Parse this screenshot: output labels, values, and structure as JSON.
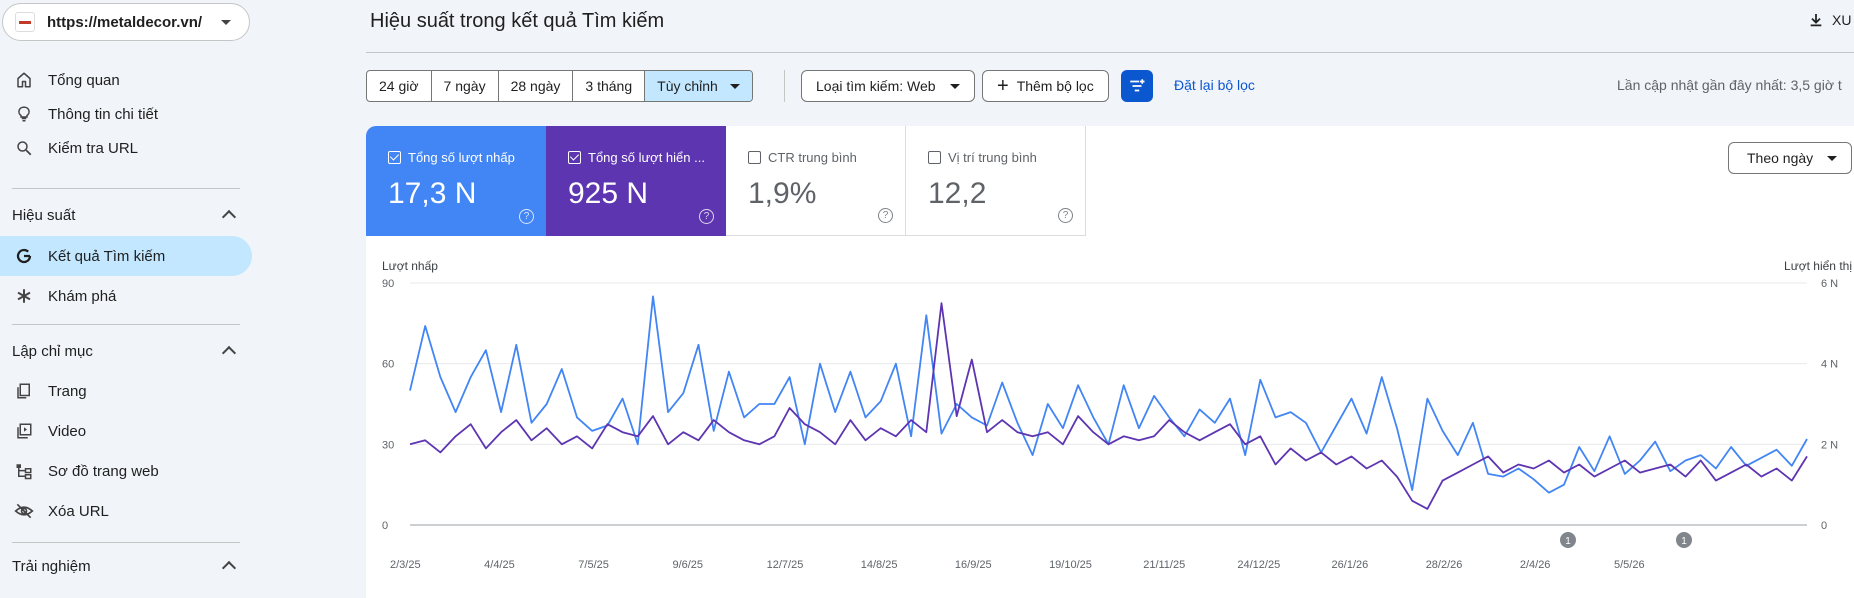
{
  "sidebar": {
    "property_url": "https://metaldecor.vn/",
    "top_items": [
      {
        "label": "Tổng quan",
        "icon": "home-icon"
      },
      {
        "label": "Thông tin chi tiết",
        "icon": "lightbulb-icon"
      },
      {
        "label": "Kiểm tra URL",
        "icon": "search-icon"
      }
    ],
    "sections": [
      {
        "title": "Hiệu suất",
        "items": [
          {
            "label": "Kết quả Tìm kiếm",
            "icon": "google-g-icon",
            "active": true
          },
          {
            "label": "Khám phá",
            "icon": "asterisk-icon"
          }
        ]
      },
      {
        "title": "Lập chỉ mục",
        "items": [
          {
            "label": "Trang",
            "icon": "pages-icon"
          },
          {
            "label": "Video",
            "icon": "video-icon"
          },
          {
            "label": "Sơ đồ trang web",
            "icon": "sitemap-icon"
          },
          {
            "label": "Xóa URL",
            "icon": "eye-off-icon"
          }
        ]
      },
      {
        "title": "Trải nghiệm",
        "items": []
      }
    ]
  },
  "header": {
    "title": "Hiệu suất trong kết quả Tìm kiếm",
    "export_label": "XU"
  },
  "filters": {
    "ranges": [
      "24 giờ",
      "7 ngày",
      "28 ngày",
      "3 tháng",
      "Tùy chỉnh"
    ],
    "selected_range": "Tùy chỉnh",
    "search_type": "Loại tìm kiếm: Web",
    "add_filter": "Thêm bộ lọc",
    "reset": "Đặt lại bộ lọc",
    "last_update": "Lần cập nhật gần đây nhất: 3,5 giờ t"
  },
  "metrics": [
    {
      "label": "Tổng số lượt nhấp",
      "value": "17,3 N",
      "checked": true,
      "color": "#4285f4"
    },
    {
      "label": "Tổng số lượt hiển ...",
      "value": "925 N",
      "checked": true,
      "color": "#5e35b1"
    },
    {
      "label": "CTR trung bình",
      "value": "1,9%",
      "checked": false
    },
    {
      "label": "Vị trí trung bình",
      "value": "12,2",
      "checked": false
    }
  ],
  "granularity": "Theo ngày",
  "chart_data": {
    "type": "line",
    "left_axis_label": "Lượt nhấp",
    "right_axis_label": "Lượt hiển thị",
    "left_ticks": [
      "90",
      "60",
      "30",
      "0"
    ],
    "left_ylim": [
      0,
      90
    ],
    "right_ticks": [
      "6 N",
      "4 N",
      "2 N",
      "0"
    ],
    "right_ylim": [
      0,
      6000
    ],
    "x_tick_labels": [
      "2/3/25",
      "4/4/25",
      "7/5/25",
      "9/6/25",
      "12/7/25",
      "14/8/25",
      "16/9/25",
      "19/10/25",
      "21/11/25",
      "24/12/25",
      "26/1/26",
      "28/2/26",
      "2/4/26",
      "5/5/26"
    ],
    "annotations": [
      "1",
      "1"
    ],
    "grid": true,
    "series": [
      {
        "name": "Tổng số lượt nhấp",
        "color": "#4285f4",
        "axis": "left",
        "values": [
          50,
          74,
          55,
          42,
          55,
          65,
          42,
          67,
          38,
          45,
          58,
          40,
          35,
          37,
          47,
          30,
          85,
          42,
          49,
          67,
          35,
          57,
          40,
          45,
          45,
          55,
          30,
          60,
          42,
          57,
          40,
          46,
          60,
          33,
          78,
          34,
          45,
          40,
          37,
          53,
          38,
          26,
          45,
          36,
          52,
          40,
          30,
          52,
          36,
          48,
          40,
          33,
          43,
          38,
          47,
          26,
          54,
          40,
          42,
          38,
          27,
          37,
          47,
          34,
          55,
          36,
          13,
          47,
          35,
          26,
          38,
          19,
          18,
          21,
          17,
          12,
          15,
          29,
          20,
          33,
          19,
          24,
          31,
          20,
          24,
          26,
          21,
          29,
          22,
          25,
          28,
          22,
          32
        ]
      },
      {
        "name": "Tổng số lượt hiển thị",
        "color": "#5e35b1",
        "axis": "right",
        "values": [
          2000,
          2100,
          1800,
          2200,
          2500,
          1900,
          2300,
          2600,
          2100,
          2400,
          2000,
          2200,
          1900,
          2500,
          2300,
          2200,
          2700,
          2000,
          2300,
          2100,
          2600,
          2300,
          2100,
          2000,
          2200,
          2900,
          2500,
          2300,
          2000,
          2600,
          2100,
          2400,
          2200,
          2600,
          2300,
          5500,
          2700,
          4100,
          2300,
          2600,
          2300,
          2200,
          2300,
          2000,
          2700,
          2300,
          2000,
          2200,
          2100,
          2200,
          2600,
          2300,
          2100,
          2300,
          2500,
          2000,
          2200,
          1500,
          1900,
          1600,
          1800,
          1500,
          1700,
          1400,
          1600,
          1200,
          600,
          400,
          1100,
          1300,
          1500,
          1700,
          1300,
          1500,
          1400,
          1600,
          1300,
          1500,
          1200,
          1400,
          1600,
          1300,
          1400,
          1500,
          1200,
          1600,
          1100,
          1300,
          1500,
          1200,
          1400,
          1100,
          1700
        ]
      }
    ]
  }
}
